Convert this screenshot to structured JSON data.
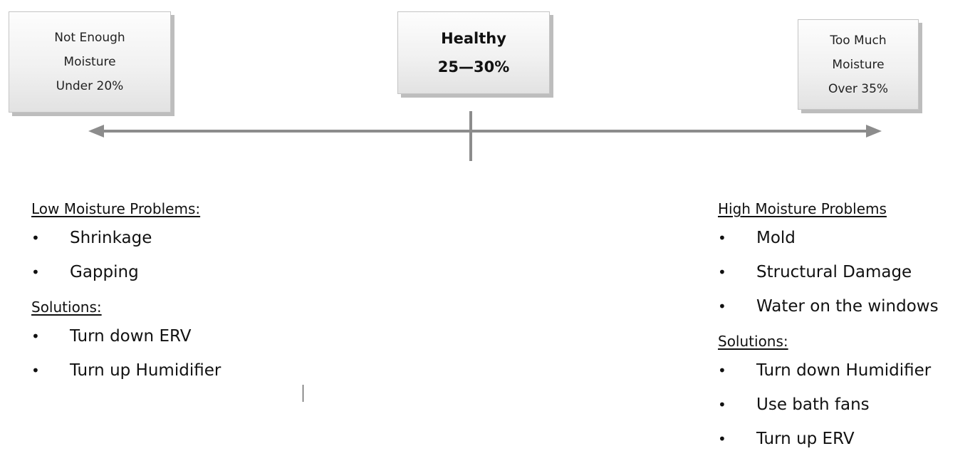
{
  "boxes": {
    "left": [
      "Not Enough",
      "Moisture",
      "Under 20%"
    ],
    "center": [
      "Healthy",
      "25—30%"
    ],
    "right": [
      "Too Much",
      "Moisture",
      "Over 35%"
    ]
  },
  "low": {
    "heading": "Low Moisture Problems:",
    "problems": [
      "Shrinkage",
      "Gapping"
    ],
    "solutions_heading": "Solutions:",
    "solutions": [
      "Turn down ERV",
      "Turn up Humidifier"
    ]
  },
  "high": {
    "heading": "High Moisture Problems",
    "problems": [
      "Mold",
      "Structural Damage",
      "Water on the windows"
    ],
    "solutions_heading": "Solutions:",
    "solutions": [
      "Turn down Humidifier",
      "Use bath fans",
      "Turn up ERV"
    ]
  },
  "bullet_symbol": "•",
  "colors": {
    "axis": "#8c8c8c",
    "box_shadow": "#bdbdbd"
  }
}
